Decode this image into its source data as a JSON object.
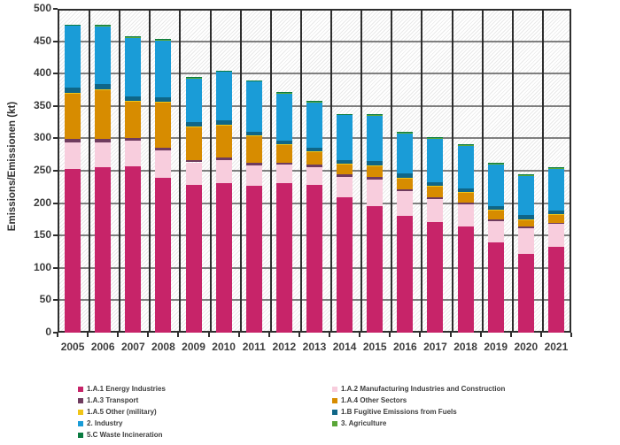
{
  "chart_data": {
    "type": "bar",
    "stacked": true,
    "title": "",
    "xlabel": "",
    "ylabel": "Emissions/Emissionen (kt)",
    "ylim": [
      0,
      500
    ],
    "ytick_step": 50,
    "grid": true,
    "legend_position": "bottom",
    "categories": [
      "2005",
      "2006",
      "2007",
      "2008",
      "2009",
      "2010",
      "2011",
      "2012",
      "2013",
      "2014",
      "2015",
      "2016",
      "2017",
      "2018",
      "2019",
      "2020",
      "2021"
    ],
    "series": [
      {
        "name": "1.A.1 Energy Industries",
        "color": "#c72469",
        "values": [
          253,
          255,
          257,
          239,
          228,
          231,
          227,
          231,
          228,
          209,
          196,
          180,
          171,
          164,
          140,
          121,
          132
        ]
      },
      {
        "name": "1.A.2 Manufacturing Industries and Construction",
        "color": "#f8cddd",
        "values": [
          41,
          39,
          39,
          42,
          35,
          36,
          31,
          28,
          28,
          32,
          41,
          38,
          35,
          34,
          32,
          40,
          36
        ]
      },
      {
        "name": "1.A.3 Transport",
        "color": "#6f3c5f",
        "values": [
          5,
          5,
          4,
          5,
          4,
          4,
          4,
          3,
          3,
          4,
          3,
          3,
          3,
          3,
          3,
          3,
          2
        ]
      },
      {
        "name": "1.A.4 Other Sectors",
        "color": "#d78c00",
        "values": [
          71,
          76,
          58,
          70,
          51,
          50,
          42,
          28,
          20,
          15,
          18,
          18,
          17,
          16,
          14,
          11,
          13
        ]
      },
      {
        "name": "1.A.5 Other (military)",
        "color": "#f0c518",
        "values": [
          0.5,
          0.5,
          0.5,
          0.5,
          0.5,
          0.5,
          0.5,
          0.5,
          0.5,
          0.5,
          0.5,
          0.5,
          0.5,
          0.5,
          0.5,
          0.5,
          0.5
        ]
      },
      {
        "name": "1.B Fugitive Emissions from Fuels",
        "color": "#0f6687",
        "values": [
          8,
          8,
          6,
          7,
          7,
          6,
          6,
          6,
          6,
          6,
          6,
          6,
          6,
          5,
          6,
          6,
          5
        ]
      },
      {
        "name": "2. Industry",
        "color": "#1a9cd7",
        "values": [
          95,
          89,
          91,
          87,
          67,
          75,
          77,
          73,
          70,
          69,
          70,
          62,
          67,
          66,
          64,
          60,
          64
        ]
      },
      {
        "name": "3. Agriculture",
        "color": "#5aa638",
        "values": [
          1.5,
          1.5,
          1.5,
          1.5,
          1.5,
          1.5,
          1.5,
          1.5,
          1.5,
          1.5,
          1.5,
          1.5,
          1.5,
          1.5,
          1.5,
          1.5,
          1.5
        ]
      },
      {
        "name": "5.C Waste Incineration",
        "color": "#0a7b41",
        "values": [
          1,
          1,
          1,
          1,
          1,
          1,
          1,
          1,
          1,
          1,
          1,
          1,
          1,
          1,
          1,
          1,
          1
        ]
      }
    ],
    "legend_columns": [
      [
        0,
        2,
        4,
        6,
        8
      ],
      [
        1,
        3,
        5,
        7
      ]
    ]
  },
  "layout_colors": {
    "gridline_horizontal": "#7f7f7f",
    "gridline_vertical": "#2e2e2e",
    "axis_text": "#3d3d3d"
  }
}
